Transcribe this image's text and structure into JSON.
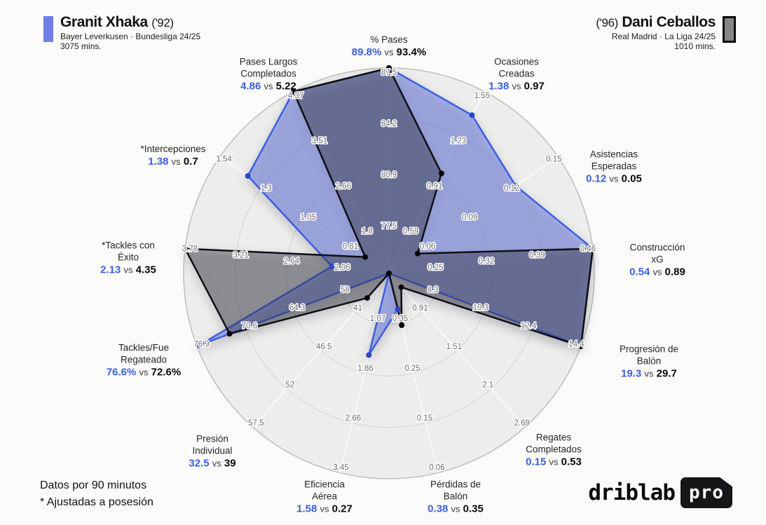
{
  "players": {
    "left": {
      "name": "Granit Xhaka",
      "birth_year": "('92)",
      "team": "Bayer Leverkusen · Bundesliga 24/25",
      "minutes": "3075 mins.",
      "color": "#6f80e2"
    },
    "right": {
      "name": "Dani Ceballos",
      "birth_year": "('96)",
      "team": "Real Madrid · La Liga 24/25",
      "minutes": "1010 mins.",
      "color": "#85858a"
    }
  },
  "footnotes": [
    "Datos por 90 minutos",
    "* Ajustadas a posesión"
  ],
  "logo": {
    "wordmark": "driblab",
    "badge": "pro"
  },
  "chart_data": {
    "type": "radar",
    "players": [
      "Granit Xhaka",
      "Dani Ceballos"
    ],
    "rings": 4,
    "vs_word": "vs",
    "units": "per 90 minutes",
    "colors": {
      "xhaka_stroke": "#3d5fe1",
      "xhaka_fill": "rgba(108,124,228,0.52)",
      "xhaka_dot": "#2a46c8",
      "ceballos_stroke": "#0e0e14",
      "ceballos_fill": "rgba(45,45,60,0.42)",
      "ceballos_dot": "#050508",
      "disc_fill": "#ededec",
      "ring_line": "#d7d7d5",
      "outer_line": "#bdbdbb",
      "spoke_line": "#ffffff",
      "tick_text": "#6e6e6e",
      "value_blue": "#3a5fe0"
    },
    "axes": [
      {
        "label": [
          "% Pases"
        ],
        "xhaka": "89.8%",
        "ceballos": "93.4%",
        "ticks": [
          "77.5",
          "80.9",
          "84.2",
          "87.5"
        ],
        "frac_a": 1.0,
        "frac_b": 1.0
      },
      {
        "label": [
          "Ocasiones",
          "Creadas"
        ],
        "xhaka": "1.38",
        "ceballos": "0.97",
        "ticks": [
          "0.59",
          "0.91",
          "1.23",
          "1.55"
        ],
        "frac_a": 0.87,
        "frac_b": 0.55
      },
      {
        "label": [
          "Asistencias",
          "Esperadas"
        ],
        "xhaka": "0.12",
        "ceballos": "0.05",
        "ticks": [
          "0.06",
          "0.09",
          "0.12",
          "0.15"
        ],
        "frac_a": 0.75,
        "frac_b": 0.17
      },
      {
        "label": [
          "Construcción",
          "xG"
        ],
        "xhaka": "0.54",
        "ceballos": "0.89",
        "ticks": [
          "0.25",
          "0.32",
          "0.39",
          "0.46"
        ],
        "frac_a": 1.0,
        "frac_b": 1.0
      },
      {
        "label": [
          "Progresión de",
          "Balón"
        ],
        "xhaka": "19.3",
        "ceballos": "29.7",
        "ticks": [
          "8.3",
          "10.3",
          "12.4",
          "14.4"
        ],
        "frac_a": 1.0,
        "frac_b": 1.0
      },
      {
        "label": [
          "Regates",
          "Completados"
        ],
        "xhaka": "0.15",
        "ceballos": "0.53",
        "ticks": [
          "0.91",
          "1.51",
          "2.1",
          "2.69"
        ],
        "frac_a": 0.0,
        "frac_b": 0.09
      },
      {
        "label": [
          "Pérdidas de",
          "Balón"
        ],
        "xhaka": "0.38",
        "ceballos": "0.35",
        "ticks": [
          "0.35",
          "0.25",
          "0.15",
          "0.06"
        ],
        "frac_a": 0.18,
        "frac_b": 0.26
      },
      {
        "label": [
          "Eficiencia",
          "Aérea"
        ],
        "xhaka": "1.58",
        "ceballos": "0.27",
        "ticks": [
          "1.07",
          "1.86",
          "2.66",
          "3.45"
        ],
        "frac_a": 0.41,
        "frac_b": 0.0
      },
      {
        "label": [
          "Presión",
          "Individual"
        ],
        "xhaka": "32.5",
        "ceballos": "39",
        "ticks": [
          "41",
          "46.5",
          "52",
          "57.5"
        ],
        "frac_a": 0.0,
        "frac_b": 0.16
      },
      {
        "label": [
          "Tackles/Fue",
          "Regateado"
        ],
        "xhaka": "76.6%",
        "ceballos": "72.6%",
        "ticks": [
          "58",
          "64.3",
          "70.6",
          "76.9"
        ],
        "frac_a": 0.988,
        "frac_b": 0.83
      },
      {
        "label": [
          "*Tackles con",
          "Éxito"
        ],
        "xhaka": "2.13",
        "ceballos": "4.35",
        "ticks": [
          "2.06",
          "2.64",
          "3.21",
          "3.78"
        ],
        "frac_a": 0.28,
        "frac_b": 1.0
      },
      {
        "label": [
          "*Intercepciones"
        ],
        "xhaka": "1.38",
        "ceballos": "0.7",
        "ticks": [
          "0.81",
          "1.05",
          "1.3",
          "1.54"
        ],
        "frac_a": 0.835,
        "frac_b": 0.14
      },
      {
        "label": [
          "Pases Largos",
          "Completados"
        ],
        "xhaka": "4.86",
        "ceballos": "5.22",
        "ticks": [
          "1.8",
          "2.66",
          "3.51",
          "4.37"
        ],
        "frac_a": 1.0,
        "frac_b": 1.0
      }
    ]
  }
}
